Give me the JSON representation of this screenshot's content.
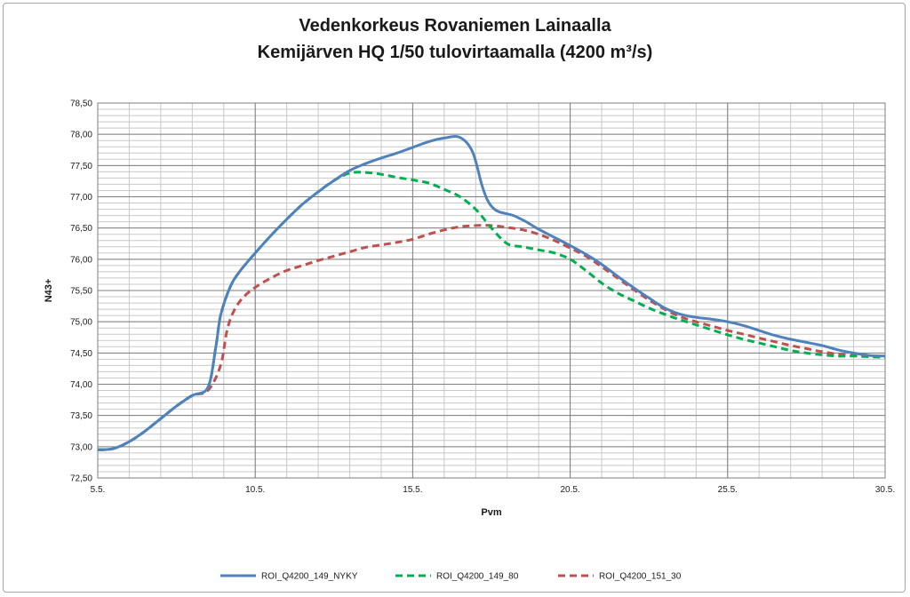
{
  "chart_data": {
    "type": "line",
    "title": "Vedenkorkeus Rovaniemen Lainaalla",
    "subtitle": "Kemijärven HQ 1/50 tulovirtaamalla (4200 m³/s)",
    "xlabel": "Pvm",
    "ylabel": "N43+",
    "xlim": [
      5,
      30
    ],
    "ylim": [
      72.5,
      78.5
    ],
    "x_ticks": [
      {
        "value": 5,
        "label": "5.5."
      },
      {
        "value": 10,
        "label": "10.5."
      },
      {
        "value": 15,
        "label": "15.5."
      },
      {
        "value": 20,
        "label": "20.5."
      },
      {
        "value": 25,
        "label": "25.5."
      },
      {
        "value": 30,
        "label": "30.5."
      }
    ],
    "y_ticks": [
      {
        "value": 72.5,
        "label": "72,50"
      },
      {
        "value": 73.0,
        "label": "73,00"
      },
      {
        "value": 73.5,
        "label": "73,50"
      },
      {
        "value": 74.0,
        "label": "74,00"
      },
      {
        "value": 74.5,
        "label": "74,50"
      },
      {
        "value": 75.0,
        "label": "75,00"
      },
      {
        "value": 75.5,
        "label": "75,50"
      },
      {
        "value": 76.0,
        "label": "76,00"
      },
      {
        "value": 76.5,
        "label": "76,50"
      },
      {
        "value": 77.0,
        "label": "77,00"
      },
      {
        "value": 77.5,
        "label": "77,50"
      },
      {
        "value": 78.0,
        "label": "78,00"
      },
      {
        "value": 78.5,
        "label": "78,50"
      }
    ],
    "grid": true,
    "legend_position": "bottom",
    "series": [
      {
        "name": "ROI_Q4200_149_NYKY",
        "color": "#4f81bd",
        "dash": "solid",
        "x": [
          5.0,
          5.5,
          6.0,
          6.5,
          7.0,
          7.5,
          8.0,
          8.5,
          8.75,
          8.9,
          9.2,
          9.5,
          10.0,
          10.5,
          11.0,
          11.5,
          12.0,
          12.5,
          13.0,
          13.5,
          14.0,
          14.5,
          15.0,
          15.5,
          16.0,
          16.5,
          16.9,
          17.2,
          17.4,
          17.6,
          17.8,
          18.2,
          18.6,
          19.0,
          19.5,
          20.0,
          20.5,
          21.0,
          21.5,
          22.0,
          22.5,
          23.0,
          23.5,
          24.0,
          24.5,
          25.0,
          25.5,
          26.0,
          26.5,
          27.0,
          27.5,
          28.0,
          28.5,
          29.0,
          29.5,
          30.0
        ],
        "values": [
          72.95,
          72.97,
          73.08,
          73.25,
          73.45,
          73.65,
          73.82,
          73.95,
          74.6,
          75.1,
          75.55,
          75.8,
          76.1,
          76.38,
          76.64,
          76.88,
          77.08,
          77.26,
          77.42,
          77.53,
          77.62,
          77.7,
          77.79,
          77.88,
          77.94,
          77.95,
          77.72,
          77.18,
          76.92,
          76.8,
          76.75,
          76.7,
          76.6,
          76.48,
          76.35,
          76.22,
          76.08,
          75.92,
          75.73,
          75.55,
          75.38,
          75.22,
          75.12,
          75.07,
          75.04,
          75.0,
          74.94,
          74.86,
          74.78,
          74.72,
          74.67,
          74.62,
          74.55,
          74.5,
          74.46,
          74.45
        ]
      },
      {
        "name": "ROI_Q4200_149_80",
        "color": "#00b050",
        "dash": "dashed",
        "x": [
          5.0,
          5.5,
          6.0,
          6.5,
          7.0,
          7.5,
          8.0,
          8.5,
          8.75,
          8.9,
          9.2,
          9.5,
          10.0,
          10.5,
          11.0,
          11.5,
          12.0,
          12.5,
          13.0,
          13.5,
          14.0,
          14.5,
          15.0,
          15.5,
          16.0,
          16.5,
          17.0,
          17.5,
          18.0,
          18.5,
          19.0,
          19.5,
          20.0,
          20.5,
          21.0,
          21.5,
          22.0,
          22.5,
          23.0,
          23.5,
          24.0,
          24.5,
          25.0,
          25.5,
          26.0,
          26.5,
          27.0,
          27.5,
          28.0,
          28.5,
          29.0,
          29.5,
          30.0
        ],
        "values": [
          72.95,
          72.97,
          73.08,
          73.25,
          73.45,
          73.65,
          73.82,
          73.95,
          74.6,
          75.1,
          75.55,
          75.8,
          76.1,
          76.38,
          76.64,
          76.88,
          77.08,
          77.26,
          77.38,
          77.39,
          77.36,
          77.31,
          77.27,
          77.22,
          77.12,
          77.0,
          76.8,
          76.5,
          76.25,
          76.2,
          76.15,
          76.1,
          76.0,
          75.82,
          75.62,
          75.46,
          75.34,
          75.22,
          75.12,
          75.03,
          74.95,
          74.87,
          74.79,
          74.72,
          74.66,
          74.6,
          74.54,
          74.5,
          74.47,
          74.45,
          74.45,
          74.44,
          74.43
        ]
      },
      {
        "name": "ROI_Q4200_151_30",
        "color": "#c0504d",
        "dash": "dashed",
        "x": [
          5.0,
          5.5,
          6.0,
          6.5,
          7.0,
          7.5,
          8.0,
          8.5,
          8.9,
          9.1,
          9.3,
          9.6,
          10.0,
          10.5,
          11.0,
          11.5,
          12.0,
          12.5,
          13.0,
          13.5,
          14.0,
          14.5,
          15.0,
          15.5,
          16.0,
          16.5,
          17.0,
          17.5,
          18.0,
          18.5,
          19.0,
          19.5,
          20.0,
          20.5,
          21.0,
          21.5,
          22.0,
          22.5,
          23.0,
          23.5,
          24.0,
          24.5,
          25.0,
          25.5,
          26.0,
          26.5,
          27.0,
          27.5,
          28.0,
          28.5,
          29.0,
          29.5,
          30.0
        ],
        "values": [
          72.95,
          72.97,
          73.08,
          73.25,
          73.45,
          73.65,
          73.82,
          73.9,
          74.3,
          74.85,
          75.15,
          75.38,
          75.55,
          75.7,
          75.82,
          75.9,
          75.98,
          76.05,
          76.12,
          76.19,
          76.23,
          76.27,
          76.32,
          76.4,
          76.47,
          76.52,
          76.54,
          76.54,
          76.51,
          76.47,
          76.4,
          76.3,
          76.18,
          76.05,
          75.88,
          75.7,
          75.52,
          75.35,
          75.2,
          75.08,
          75.0,
          74.93,
          74.86,
          74.8,
          74.74,
          74.68,
          74.62,
          74.57,
          74.52,
          74.48,
          74.46,
          74.45,
          74.44
        ]
      }
    ]
  }
}
